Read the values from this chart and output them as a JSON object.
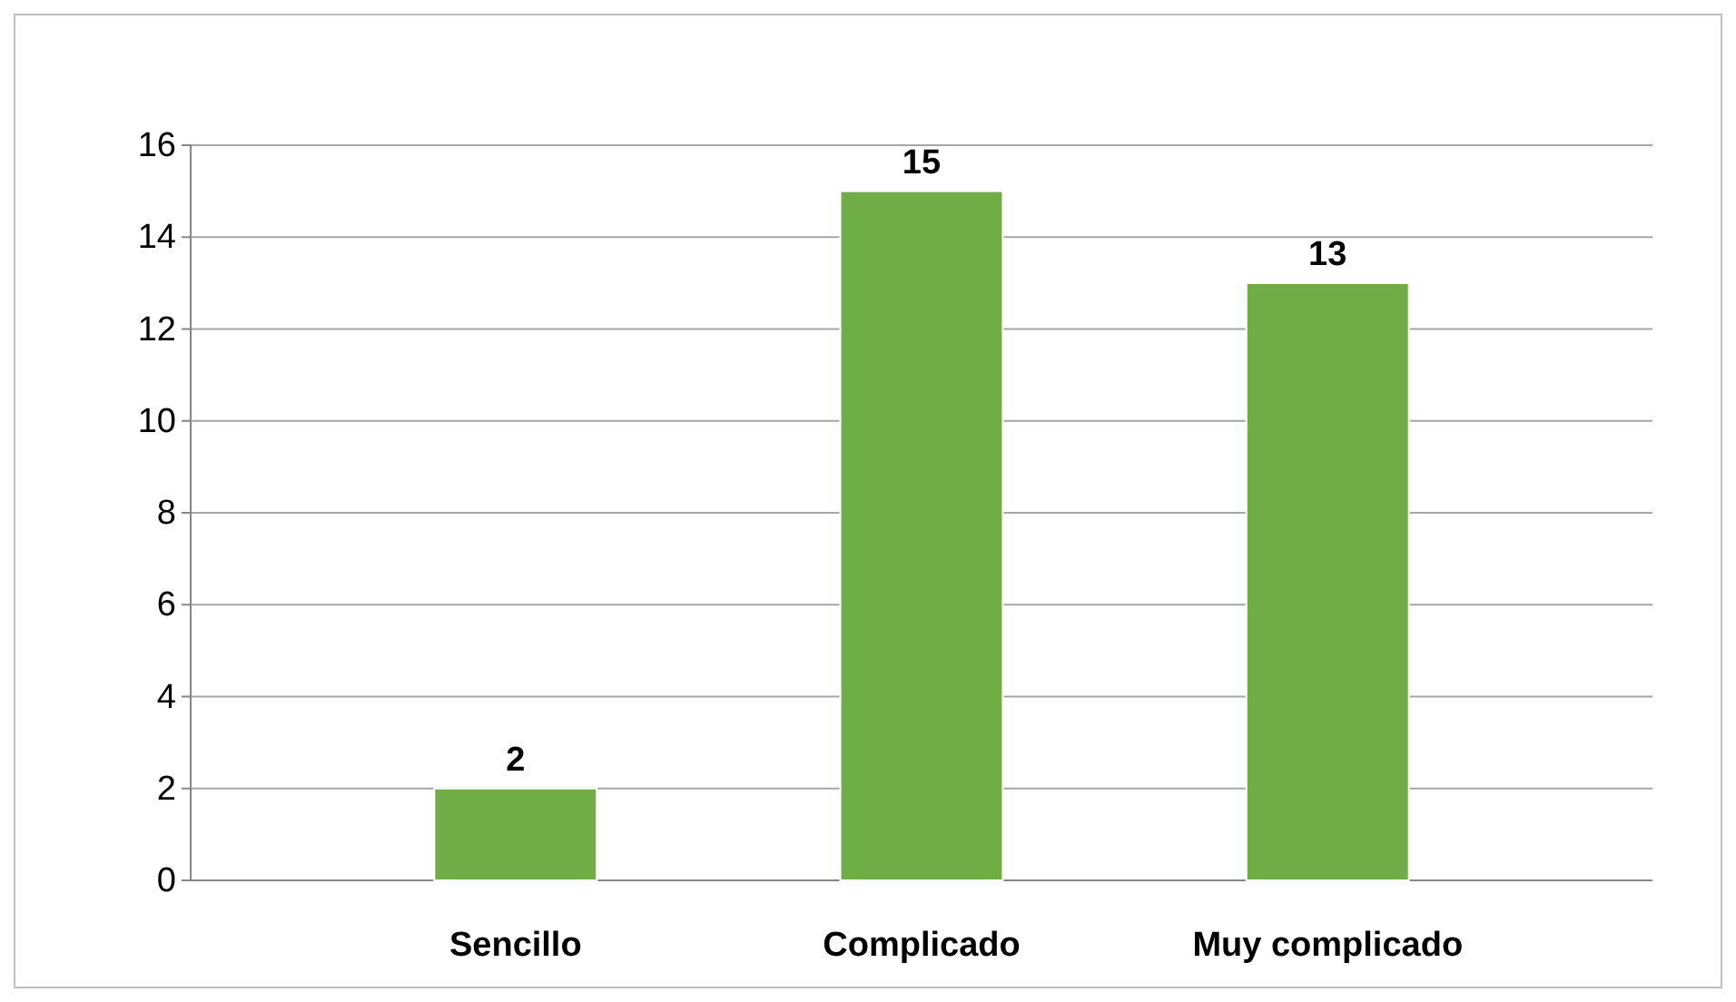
{
  "chart_data": {
    "type": "bar",
    "categories": [
      "Sencillo",
      "Complicado",
      "Muy complicado"
    ],
    "series": [
      {
        "color": "#70ad47",
        "values": [
          2,
          15,
          13
        ]
      }
    ],
    "ylim": [
      0,
      16
    ],
    "yticks": [
      0,
      2,
      4,
      6,
      8,
      10,
      12,
      14,
      16
    ],
    "grid": "y",
    "data_labels": true
  }
}
